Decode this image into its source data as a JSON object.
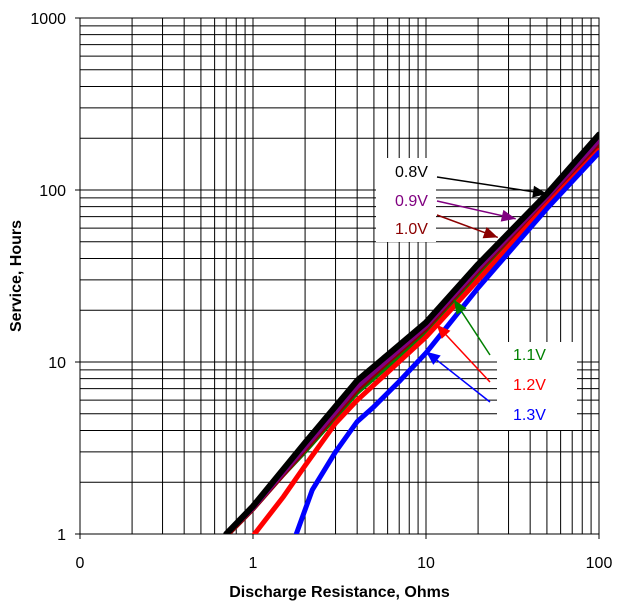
{
  "chart_data": {
    "type": "line",
    "xlabel": "Discharge Resistance, Ohms",
    "ylabel": "Service, Hours",
    "xscale": "log",
    "yscale": "log",
    "xlim": [
      0.1,
      100
    ],
    "ylim": [
      1,
      1000
    ],
    "grid": true,
    "x_tick_labels": [
      "0",
      "1",
      "10",
      "100"
    ],
    "y_tick_labels": [
      "1",
      "10",
      "100",
      "1000"
    ],
    "series": [
      {
        "name": "0.8V",
        "color": "#000000",
        "points": [
          [
            0.7,
            1.0
          ],
          [
            1.0,
            1.45
          ],
          [
            2.0,
            3.4
          ],
          [
            4.0,
            7.8
          ],
          [
            6.0,
            11.0
          ],
          [
            10.0,
            17.0
          ],
          [
            20.0,
            37.0
          ],
          [
            50.0,
            95.0
          ],
          [
            100.0,
            210.0
          ]
        ]
      },
      {
        "name": "0.9V",
        "color": "#800080",
        "points": [
          [
            0.7,
            1.0
          ],
          [
            1.0,
            1.42
          ],
          [
            2.0,
            3.2
          ],
          [
            4.0,
            7.2
          ],
          [
            6.0,
            10.3
          ],
          [
            10.0,
            16.2
          ],
          [
            20.0,
            35.0
          ],
          [
            50.0,
            91.0
          ],
          [
            100.0,
            195.0
          ]
        ]
      },
      {
        "name": "1.0V",
        "color": "#8b0000",
        "points": [
          [
            0.72,
            1.0
          ],
          [
            1.0,
            1.4
          ],
          [
            2.0,
            3.1
          ],
          [
            4.0,
            6.9
          ],
          [
            6.0,
            10.0
          ],
          [
            10.0,
            15.7
          ],
          [
            20.0,
            34.0
          ],
          [
            50.0,
            88.0
          ],
          [
            100.0,
            186.0
          ]
        ]
      },
      {
        "name": "1.1V",
        "color": "#008000",
        "points": [
          [
            0.7,
            1.0
          ],
          [
            1.0,
            1.43
          ],
          [
            2.0,
            3.0
          ],
          [
            4.0,
            6.6
          ],
          [
            6.0,
            9.4
          ],
          [
            10.0,
            15.0
          ],
          [
            20.0,
            32.5
          ],
          [
            50.0,
            85.0
          ],
          [
            100.0,
            178.0
          ]
        ]
      },
      {
        "name": "1.2V",
        "color": "#ff0000",
        "points": [
          [
            1.02,
            1.0
          ],
          [
            1.5,
            1.65
          ],
          [
            2.0,
            2.5
          ],
          [
            3.0,
            4.4
          ],
          [
            4.0,
            6.0
          ],
          [
            6.0,
            8.7
          ],
          [
            10.0,
            14.0
          ],
          [
            20.0,
            30.0
          ],
          [
            50.0,
            82.0
          ],
          [
            100.0,
            170.0
          ]
        ]
      },
      {
        "name": "1.3V",
        "color": "#0000ff",
        "points": [
          [
            1.78,
            1.0
          ],
          [
            2.2,
            1.8
          ],
          [
            3.0,
            3.0
          ],
          [
            4.0,
            4.5
          ],
          [
            5.0,
            5.5
          ],
          [
            7.0,
            7.7
          ],
          [
            10.0,
            11.3
          ],
          [
            20.0,
            27.0
          ],
          [
            50.0,
            78.0
          ],
          [
            100.0,
            165.0
          ]
        ]
      }
    ],
    "annotations": [
      {
        "label": "0.8V",
        "color": "#000000",
        "arrow_to": [
          50.0,
          95.0
        ]
      },
      {
        "label": "0.9V",
        "color": "#800080",
        "arrow_to": [
          33.0,
          68.0
        ]
      },
      {
        "label": "1.0V",
        "color": "#8b0000",
        "arrow_to": [
          26.0,
          53.0
        ]
      },
      {
        "label": "1.1V",
        "color": "#008000",
        "arrow_to": [
          14.5,
          23.0
        ]
      },
      {
        "label": "1.2V",
        "color": "#ff0000",
        "arrow_to": [
          11.5,
          16.5
        ]
      },
      {
        "label": "1.3V",
        "color": "#0000ff",
        "arrow_to": [
          10.0,
          11.5
        ]
      }
    ]
  }
}
